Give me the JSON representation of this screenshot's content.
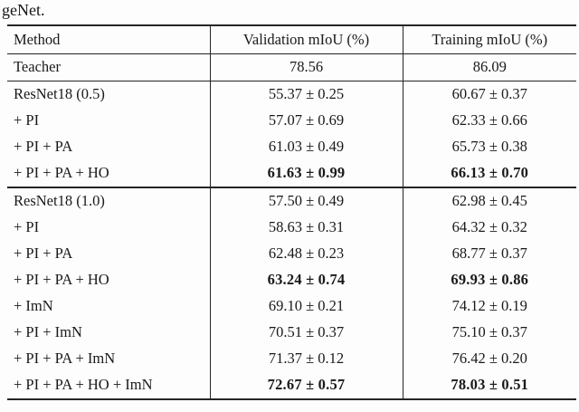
{
  "caption": "geNet.",
  "table": {
    "columns": [
      "Method",
      "Validation mIoU (%)",
      "Training mIoU (%)"
    ],
    "rows": [
      {
        "method": "Teacher",
        "val": "78.56",
        "train": "86.09",
        "bold": false,
        "rule_above": true,
        "section_rule": false
      },
      {
        "method": "ResNet18 (0.5)",
        "val": "55.37 ± 0.25",
        "train": "60.67 ± 0.37",
        "bold": false,
        "rule_above": true,
        "section_rule": false
      },
      {
        "method": "+ PI",
        "val": "57.07 ± 0.69",
        "train": "62.33 ± 0.66",
        "bold": false,
        "rule_above": false,
        "section_rule": false
      },
      {
        "method": "+ PI + PA",
        "val": "61.03 ± 0.49",
        "train": "65.73 ± 0.38",
        "bold": false,
        "rule_above": false,
        "section_rule": false
      },
      {
        "method": "+ PI + PA + HO",
        "val": "61.63 ± 0.99",
        "train": "66.13 ± 0.70",
        "bold": true,
        "rule_above": false,
        "section_rule": false
      },
      {
        "method": "ResNet18 (1.0)",
        "val": "57.50 ± 0.49",
        "train": "62.98 ± 0.45",
        "bold": false,
        "rule_above": false,
        "section_rule": true
      },
      {
        "method": "+ PI",
        "val": "58.63 ± 0.31",
        "train": "64.32 ± 0.32",
        "bold": false,
        "rule_above": false,
        "section_rule": false
      },
      {
        "method": "+ PI + PA",
        "val": "62.48 ± 0.23",
        "train": "68.77 ± 0.37",
        "bold": false,
        "rule_above": false,
        "section_rule": false
      },
      {
        "method": "+ PI + PA + HO",
        "val": "63.24 ± 0.74",
        "train": "69.93 ± 0.86",
        "bold": true,
        "rule_above": false,
        "section_rule": false
      },
      {
        "method": "+ ImN",
        "val": "69.10 ± 0.21",
        "train": "74.12 ± 0.19",
        "bold": false,
        "rule_above": false,
        "section_rule": false
      },
      {
        "method": "+ PI + ImN",
        "val": "70.51 ± 0.37",
        "train": "75.10 ± 0.37",
        "bold": false,
        "rule_above": false,
        "section_rule": false
      },
      {
        "method": "+ PI + PA + ImN",
        "val": "71.37 ± 0.12",
        "train": "76.42 ± 0.20",
        "bold": false,
        "rule_above": false,
        "section_rule": false
      },
      {
        "method": "+ PI + PA + HO + ImN",
        "val": "72.67 ± 0.57",
        "train": "78.03 ± 0.51",
        "bold": true,
        "rule_above": false,
        "section_rule": false
      }
    ]
  }
}
